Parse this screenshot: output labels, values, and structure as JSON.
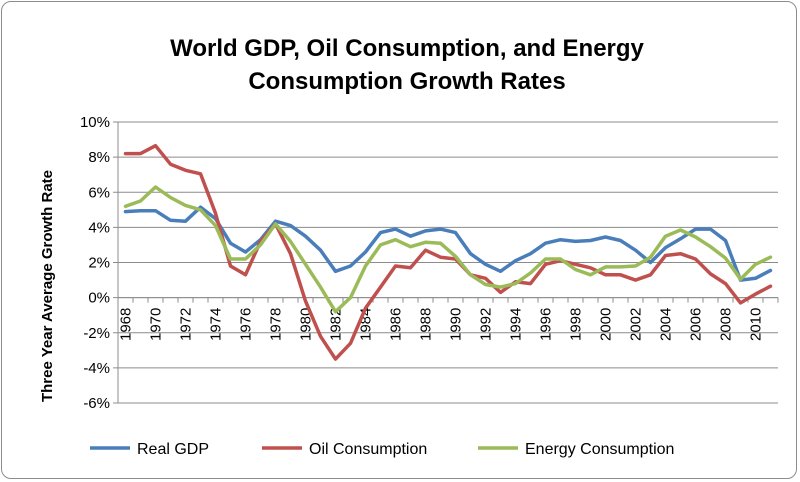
{
  "chart_data": {
    "type": "line",
    "title_lines": [
      "World GDP,  Oil Consumption, and Energy",
      "Consumption Growth Rates"
    ],
    "ylabel": "Three Year Average Growth Rate",
    "xlabel": "",
    "ylim": [
      -6,
      10
    ],
    "y_ticks": [
      -6,
      -4,
      -2,
      0,
      2,
      4,
      6,
      8,
      10
    ],
    "y_tick_labels": [
      "-6%",
      "-4%",
      "-2%",
      "0%",
      "2%",
      "4%",
      "6%",
      "8%",
      "10%"
    ],
    "x": [
      1968,
      1969,
      1970,
      1971,
      1972,
      1973,
      1974,
      1975,
      1976,
      1977,
      1978,
      1979,
      1980,
      1981,
      1982,
      1983,
      1984,
      1985,
      1986,
      1987,
      1988,
      1989,
      1990,
      1991,
      1992,
      1993,
      1994,
      1995,
      1996,
      1997,
      1998,
      1999,
      2000,
      2001,
      2002,
      2003,
      2004,
      2005,
      2006,
      2007,
      2008,
      2009,
      2010,
      2011
    ],
    "x_tick_labels": [
      "1968",
      "1970",
      "1972",
      "1974",
      "1976",
      "1978",
      "1980",
      "1982",
      "1984",
      "1986",
      "1988",
      "1990",
      "1992",
      "1994",
      "1996",
      "1998",
      "2000",
      "2002",
      "2004",
      "2006",
      "2008",
      "2010"
    ],
    "grid": true,
    "legend_position": "bottom",
    "series": [
      {
        "name": "Real GDP",
        "color": "#4a7ebb",
        "values": [
          4.9,
          4.95,
          4.95,
          4.4,
          4.35,
          5.15,
          4.5,
          3.1,
          2.6,
          3.3,
          4.35,
          4.1,
          3.5,
          2.7,
          1.5,
          1.8,
          2.6,
          3.7,
          3.9,
          3.5,
          3.8,
          3.9,
          3.7,
          2.5,
          1.9,
          1.5,
          2.1,
          2.5,
          3.1,
          3.3,
          3.2,
          3.25,
          3.45,
          3.25,
          2.7,
          2.0,
          2.85,
          3.35,
          3.9,
          3.9,
          3.25,
          1.0,
          1.1,
          1.55
        ]
      },
      {
        "name": "Oil Consumption",
        "color": "#c0504d",
        "values": [
          8.2,
          8.2,
          8.65,
          7.6,
          7.25,
          7.05,
          4.8,
          1.8,
          1.3,
          3.2,
          4.2,
          2.5,
          -0.2,
          -2.2,
          -3.5,
          -2.6,
          -0.6,
          0.6,
          1.8,
          1.7,
          2.7,
          2.3,
          2.2,
          1.3,
          1.1,
          0.3,
          0.9,
          0.8,
          1.9,
          2.1,
          1.9,
          1.7,
          1.3,
          1.3,
          1.0,
          1.3,
          2.4,
          2.5,
          2.2,
          1.35,
          0.8,
          -0.3,
          0.2,
          0.65
        ]
      },
      {
        "name": "Energy Consumption",
        "color": "#9bbb59",
        "values": [
          5.2,
          5.5,
          6.3,
          5.7,
          5.25,
          5.0,
          4.1,
          2.2,
          2.2,
          3.0,
          4.2,
          3.2,
          1.9,
          0.6,
          -0.8,
          0.0,
          1.8,
          3.0,
          3.3,
          2.9,
          3.15,
          3.1,
          2.35,
          1.3,
          0.75,
          0.6,
          0.8,
          1.4,
          2.2,
          2.2,
          1.6,
          1.3,
          1.75,
          1.75,
          1.8,
          2.3,
          3.5,
          3.85,
          3.45,
          2.9,
          2.25,
          1.05,
          1.9,
          2.3
        ]
      }
    ]
  }
}
